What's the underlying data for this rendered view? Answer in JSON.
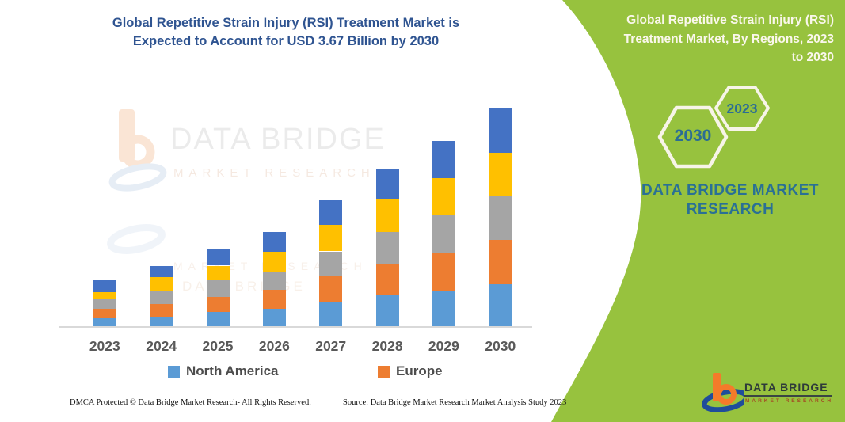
{
  "header": {
    "title_lines": [
      "Global Repetitive Strain Injury (RSI) Treatment Market is",
      "Expected to Account for USD 3.67 Billion by 2030"
    ]
  },
  "panel": {
    "bg_color": "#97C23E",
    "title_lines": [
      "Global Repetitive Strain Injury (RSI)",
      "Treatment Market, By Regions, 2023",
      "to 2030"
    ],
    "hexagons": [
      {
        "label": "2030"
      },
      {
        "label": "2023"
      }
    ],
    "brand_lines": [
      "DATA BRIDGE MARKET",
      "RESEARCH"
    ],
    "logo": {
      "name": "DATA BRIDGE",
      "sub": "MARKET RESEARCH"
    }
  },
  "watermark": {
    "brand": "DATA BRIDGE",
    "sub": "MARKET RESEARCH"
  },
  "footer": {
    "left": "DMCA Protected © Data Bridge Market Research-  All Rights Reserved.",
    "right": "Source: Data Bridge Market Research  Market Analysis Study 2023"
  },
  "chart_data": {
    "type": "bar",
    "stacked": true,
    "title": "Global Repetitive Strain Injury (RSI) Treatment Market is Expected to Account for USD 3.67 Billion by 2030",
    "unit": "USD Billion",
    "categories": [
      "2023",
      "2024",
      "2025",
      "2026",
      "2027",
      "2028",
      "2029",
      "2030"
    ],
    "series": [
      {
        "name": "North America",
        "color": "#5B9BD5",
        "in_legend": true,
        "values": [
          0.15,
          0.17,
          0.25,
          0.31,
          0.42,
          0.53,
          0.61,
          0.72
        ]
      },
      {
        "name": "Europe",
        "color": "#ED7D31",
        "in_legend": true,
        "values": [
          0.15,
          0.22,
          0.26,
          0.32,
          0.45,
          0.53,
          0.64,
          0.74
        ]
      },
      {
        "name": "",
        "color": "#A5A5A5",
        "in_legend": false,
        "values": [
          0.16,
          0.22,
          0.28,
          0.3,
          0.4,
          0.54,
          0.64,
          0.74
        ]
      },
      {
        "name": "",
        "color": "#FFC000",
        "in_legend": false,
        "values": [
          0.13,
          0.23,
          0.24,
          0.33,
          0.45,
          0.55,
          0.61,
          0.72
        ]
      },
      {
        "name": "",
        "color": "#4472C4",
        "in_legend": false,
        "values": [
          0.2,
          0.19,
          0.27,
          0.34,
          0.41,
          0.51,
          0.63,
          0.75
        ]
      }
    ],
    "totals": [
      0.79,
      1.03,
      1.3,
      1.6,
      2.13,
      2.66,
      3.13,
      3.67
    ],
    "legend": [
      {
        "label": "North America",
        "color": "#5B9BD5"
      },
      {
        "label": "Europe",
        "color": "#ED7D31"
      }
    ],
    "xlabel": "",
    "ylabel": "",
    "ylim": [
      0,
      3.9
    ],
    "grid": false,
    "legend_position": "bottom",
    "values_note": "segment values estimated from bar pixel heights; only 2030 total (3.67) labeled in headline"
  }
}
